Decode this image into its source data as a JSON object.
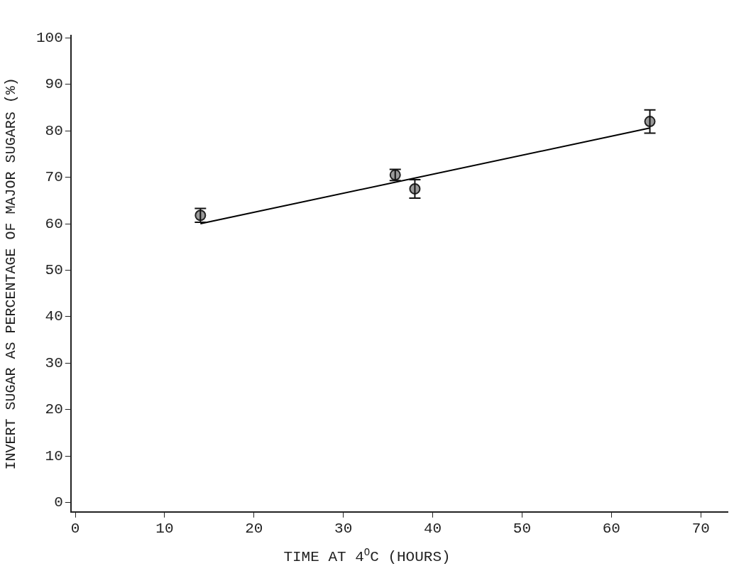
{
  "chart_data": {
    "type": "scatter",
    "xlabel": "TIME AT 4$^{O}$C (HOURS)",
    "ylabel": "INVERT SUGAR AS PERCENTAGE OF MAJOR SUGARS (%)",
    "xlim": [
      -0.5,
      73
    ],
    "xticks": [
      0,
      10,
      20,
      30,
      40,
      50,
      60,
      70
    ],
    "ylim": [
      -2,
      100.5
    ],
    "yticks": [
      0,
      10,
      20,
      30,
      40,
      50,
      60,
      70,
      80,
      90,
      100
    ],
    "grid": false,
    "legend": false,
    "series": [
      {
        "type": "scatter",
        "color": "#9a9a9a",
        "marker": "circle",
        "x": [
          14,
          35.8,
          38,
          64.3
        ],
        "values": [
          61.8,
          70.5,
          67.5,
          82
        ],
        "errors": [
          1.5,
          1.2,
          2,
          2.5
        ]
      },
      {
        "type": "line",
        "color": "#000000",
        "marker": "none",
        "line_style": "solid",
        "x": [
          14,
          64.3
        ],
        "values": [
          60,
          80.6
        ]
      }
    ]
  }
}
